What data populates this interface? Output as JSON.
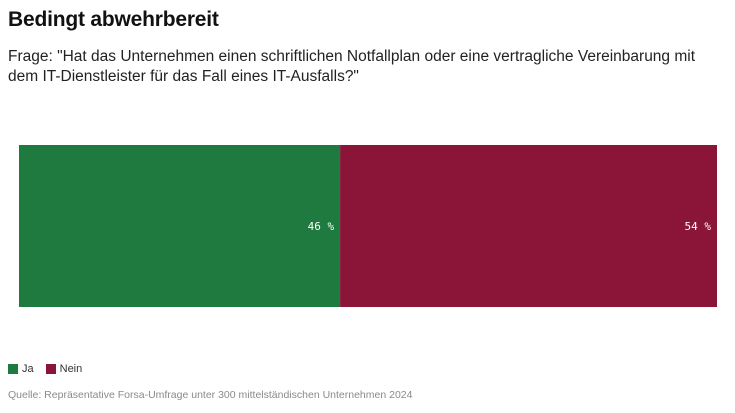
{
  "title": "Bedingt abwehrbereit",
  "subtitle": "Frage: \"Hat das Unternehmen einen schriftlichen Notfallplan oder eine vertragliche Vereinbarung mit dem IT-Dienstleister für das Fall eines IT-Ausfalls?\"",
  "source": "Quelle: Repräsentative Forsa-Umfrage unter 300 mittelständischen Unternehmen 2024",
  "colors": {
    "ja": "#1f7a3f",
    "nein": "#8a1538"
  },
  "chart_data": {
    "type": "bar",
    "orientation": "horizontal-stacked",
    "categories": [
      "Ja",
      "Nein"
    ],
    "values": [
      46,
      54
    ],
    "value_labels": [
      "46 %",
      "54 %"
    ],
    "unit": "%",
    "legend_position": "bottom-left",
    "grid": false
  },
  "legend": {
    "items": [
      {
        "label": "Ja",
        "color": "#1f7a3f"
      },
      {
        "label": "Nein",
        "color": "#8a1538"
      }
    ]
  }
}
